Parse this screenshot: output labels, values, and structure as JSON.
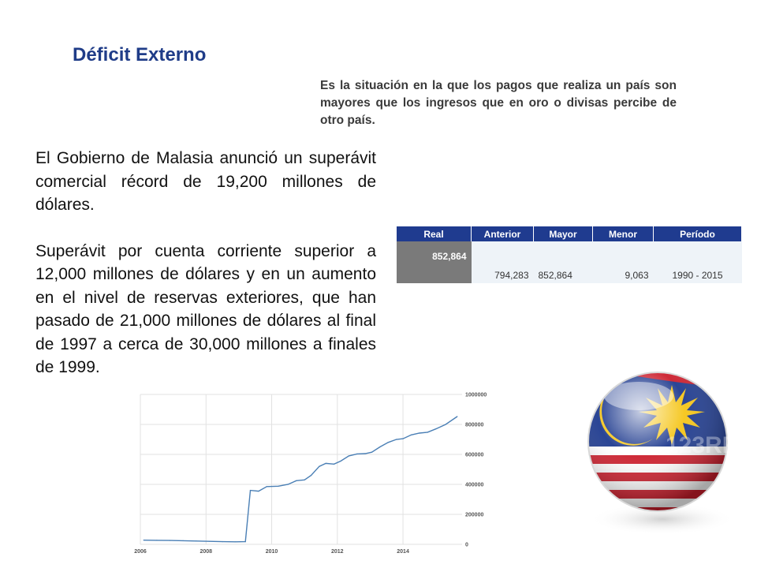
{
  "slide": {
    "title": "Déficit Externo",
    "definition": "Es la situación en la que los pagos que realiza un país son mayores que los ingresos que en oro o divisas percibe de otro país.",
    "paragraph1": "El Gobierno de Malasia anunció un superávit comercial récord de 19,200 millones de dólares.",
    "paragraph2": "Superávit por cuenta corriente superior a 12,000 millones de dólares y en un aumento en el nivel de reservas exteriores, que han pasado de 21,000 millones de dólares al final de 1997 a cerca de 30,000 millones a finales de 1999."
  },
  "table": {
    "headers": [
      "Real",
      "Anterior",
      "Mayor",
      "Menor",
      "Período"
    ],
    "row": [
      "852,864",
      "794,283",
      "852,864",
      "9,063",
      "1990 - 2015"
    ]
  },
  "colors": {
    "title": "#1f3c88",
    "table_header": "#1f3b8f",
    "line": "#4a7fb5"
  },
  "flag_image": {
    "watermark": "123RF"
  },
  "chart_data": {
    "type": "line",
    "title": "",
    "xlabel": "",
    "ylabel": "",
    "x_ticks": [
      "2006",
      "2008",
      "2010",
      "2012",
      "2014"
    ],
    "y_ticks": [
      "0",
      "200000",
      "400000",
      "600000",
      "800000",
      "1000000"
    ],
    "xlim": [
      2006,
      2015.8
    ],
    "ylim": [
      0,
      1000000
    ],
    "grid": true,
    "y_axis_side": "right",
    "series": [
      {
        "values": [
          [
            2006.1,
            28000
          ],
          [
            2006.5,
            27000
          ],
          [
            2006.9,
            26000
          ],
          [
            2007.3,
            24000
          ],
          [
            2007.7,
            22000
          ],
          [
            2008.1,
            20000
          ],
          [
            2008.5,
            18000
          ],
          [
            2008.9,
            17000
          ],
          [
            2009.2,
            18000
          ],
          [
            2009.35,
            360000
          ],
          [
            2009.6,
            355000
          ],
          [
            2009.85,
            385000
          ],
          [
            2010.2,
            388000
          ],
          [
            2010.5,
            400000
          ],
          [
            2010.75,
            425000
          ],
          [
            2011.0,
            430000
          ],
          [
            2011.2,
            460000
          ],
          [
            2011.45,
            520000
          ],
          [
            2011.65,
            540000
          ],
          [
            2011.9,
            535000
          ],
          [
            2012.1,
            555000
          ],
          [
            2012.35,
            590000
          ],
          [
            2012.6,
            603000
          ],
          [
            2012.85,
            605000
          ],
          [
            2013.05,
            615000
          ],
          [
            2013.3,
            650000
          ],
          [
            2013.55,
            680000
          ],
          [
            2013.8,
            700000
          ],
          [
            2014.0,
            705000
          ],
          [
            2014.25,
            730000
          ],
          [
            2014.5,
            742000
          ],
          [
            2014.75,
            748000
          ],
          [
            2015.0,
            770000
          ],
          [
            2015.3,
            800000
          ],
          [
            2015.65,
            852864
          ]
        ]
      }
    ]
  }
}
